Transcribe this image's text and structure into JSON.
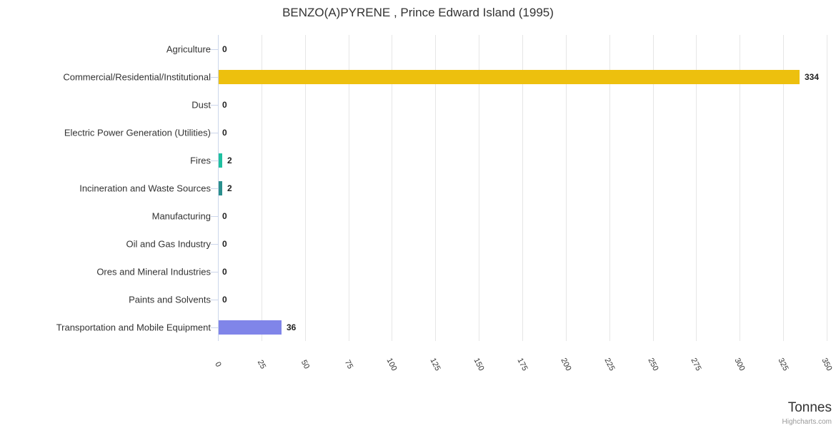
{
  "title": "BENZO(A)PYRENE , Prince Edward Island (1995)",
  "chart_data": {
    "type": "bar",
    "orientation": "horizontal",
    "title": "BENZO(A)PYRENE , Prince Edward Island (1995)",
    "categories": [
      "Agriculture",
      "Commercial/Residential/Institutional",
      "Dust",
      "Electric Power Generation (Utilities)",
      "Fires",
      "Incineration and Waste Sources",
      "Manufacturing",
      "Oil and Gas Industry",
      "Ores and Mineral Industries",
      "Paints and Solvents",
      "Transportation and Mobile Equipment"
    ],
    "values": [
      0,
      334,
      0,
      0,
      2,
      2,
      0,
      0,
      0,
      0,
      36
    ],
    "bar_colors": [
      null,
      "#EDC00E",
      null,
      null,
      "#1FC0A0",
      "#2B8F8D",
      null,
      null,
      null,
      null,
      "#8085E9"
    ],
    "xlabel": "Tonnes",
    "ylabel": "",
    "xlim": [
      0,
      350
    ],
    "x_ticks": [
      0,
      25,
      50,
      75,
      100,
      125,
      150,
      175,
      200,
      225,
      250,
      275,
      300,
      325,
      350
    ],
    "grid": true,
    "legend": false,
    "data_labels_shown": true
  },
  "colors": {
    "axis_line": "#ccd6eb",
    "gridline": "#e6e6e6",
    "label_text": "#333333",
    "value_text": "#222222",
    "credit_text": "#999999"
  },
  "credit": {
    "label": "Highcharts.com"
  }
}
